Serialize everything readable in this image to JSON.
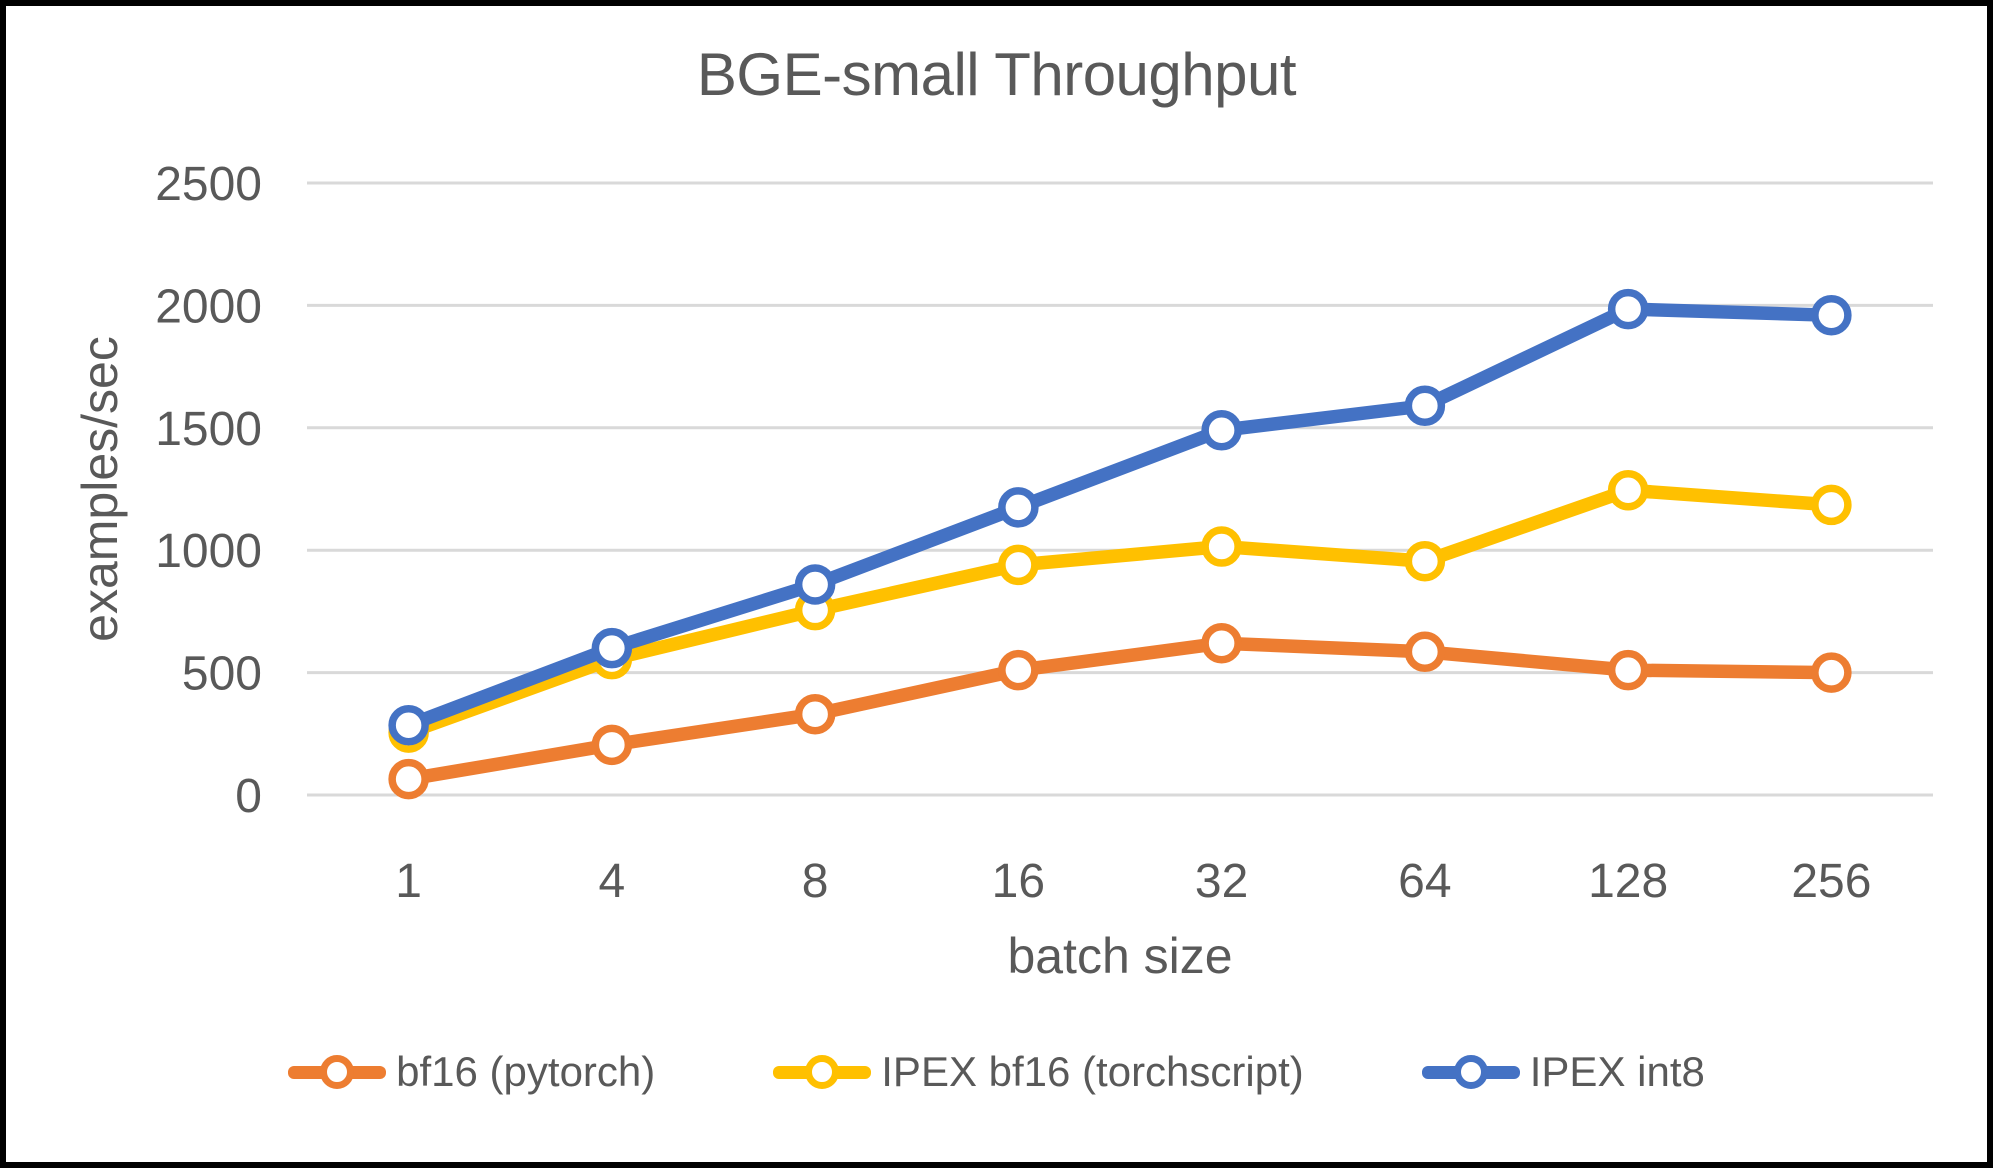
{
  "frame": {
    "border_color": "#000000",
    "background_color": "#FFFFFF"
  },
  "chart_data": {
    "type": "line",
    "title": "BGE-small Throughput",
    "xlabel": "batch size",
    "ylabel": "examples/sec",
    "categories": [
      "1",
      "4",
      "8",
      "16",
      "32",
      "64",
      "128",
      "256"
    ],
    "series": [
      {
        "name": "bf16 (pytorch)",
        "color": "#ED7D31",
        "values": [
          65,
          205,
          330,
          510,
          620,
          585,
          510,
          500
        ]
      },
      {
        "name": "IPEX bf16 (torchscript)",
        "color": "#FFC000",
        "values": [
          255,
          555,
          755,
          940,
          1015,
          955,
          1245,
          1185
        ]
      },
      {
        "name": "IPEX int8",
        "color": "#4472C4",
        "values": [
          285,
          600,
          860,
          1175,
          1490,
          1590,
          1985,
          1960
        ]
      }
    ],
    "ylim": [
      0,
      2500
    ],
    "yticks": [
      0,
      500,
      1000,
      1500,
      2000,
      2500
    ],
    "grid": true,
    "legend_position": "bottom",
    "gridline_color": "#D9D9D9",
    "text_color": "#595959",
    "marker_style": "open-circle"
  }
}
